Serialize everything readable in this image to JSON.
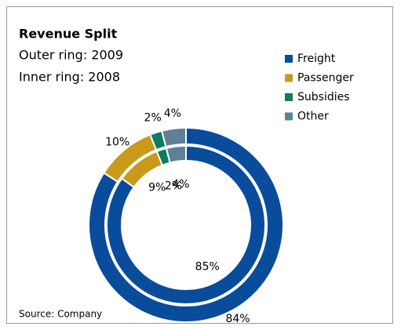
{
  "chart_data": {
    "type": "donut",
    "title": "Revenue Split",
    "subtitle": [
      "Outer ring: 2009",
      "Inner ring: 2008"
    ],
    "categories": [
      "Freight",
      "Passenger",
      "Subsidies",
      "Other"
    ],
    "colors": [
      "#0a4c9c",
      "#c99a1a",
      "#107a62",
      "#5f8095"
    ],
    "series": [
      {
        "values": [
          84,
          10,
          2,
          4
        ],
        "value_labels": [
          "84%",
          "10%",
          "2%",
          "4%"
        ]
      },
      {
        "values": [
          85,
          9,
          2,
          4
        ],
        "value_labels": [
          "85%",
          "9%",
          "2%",
          "4%"
        ]
      }
    ],
    "source": "Source: Company"
  }
}
